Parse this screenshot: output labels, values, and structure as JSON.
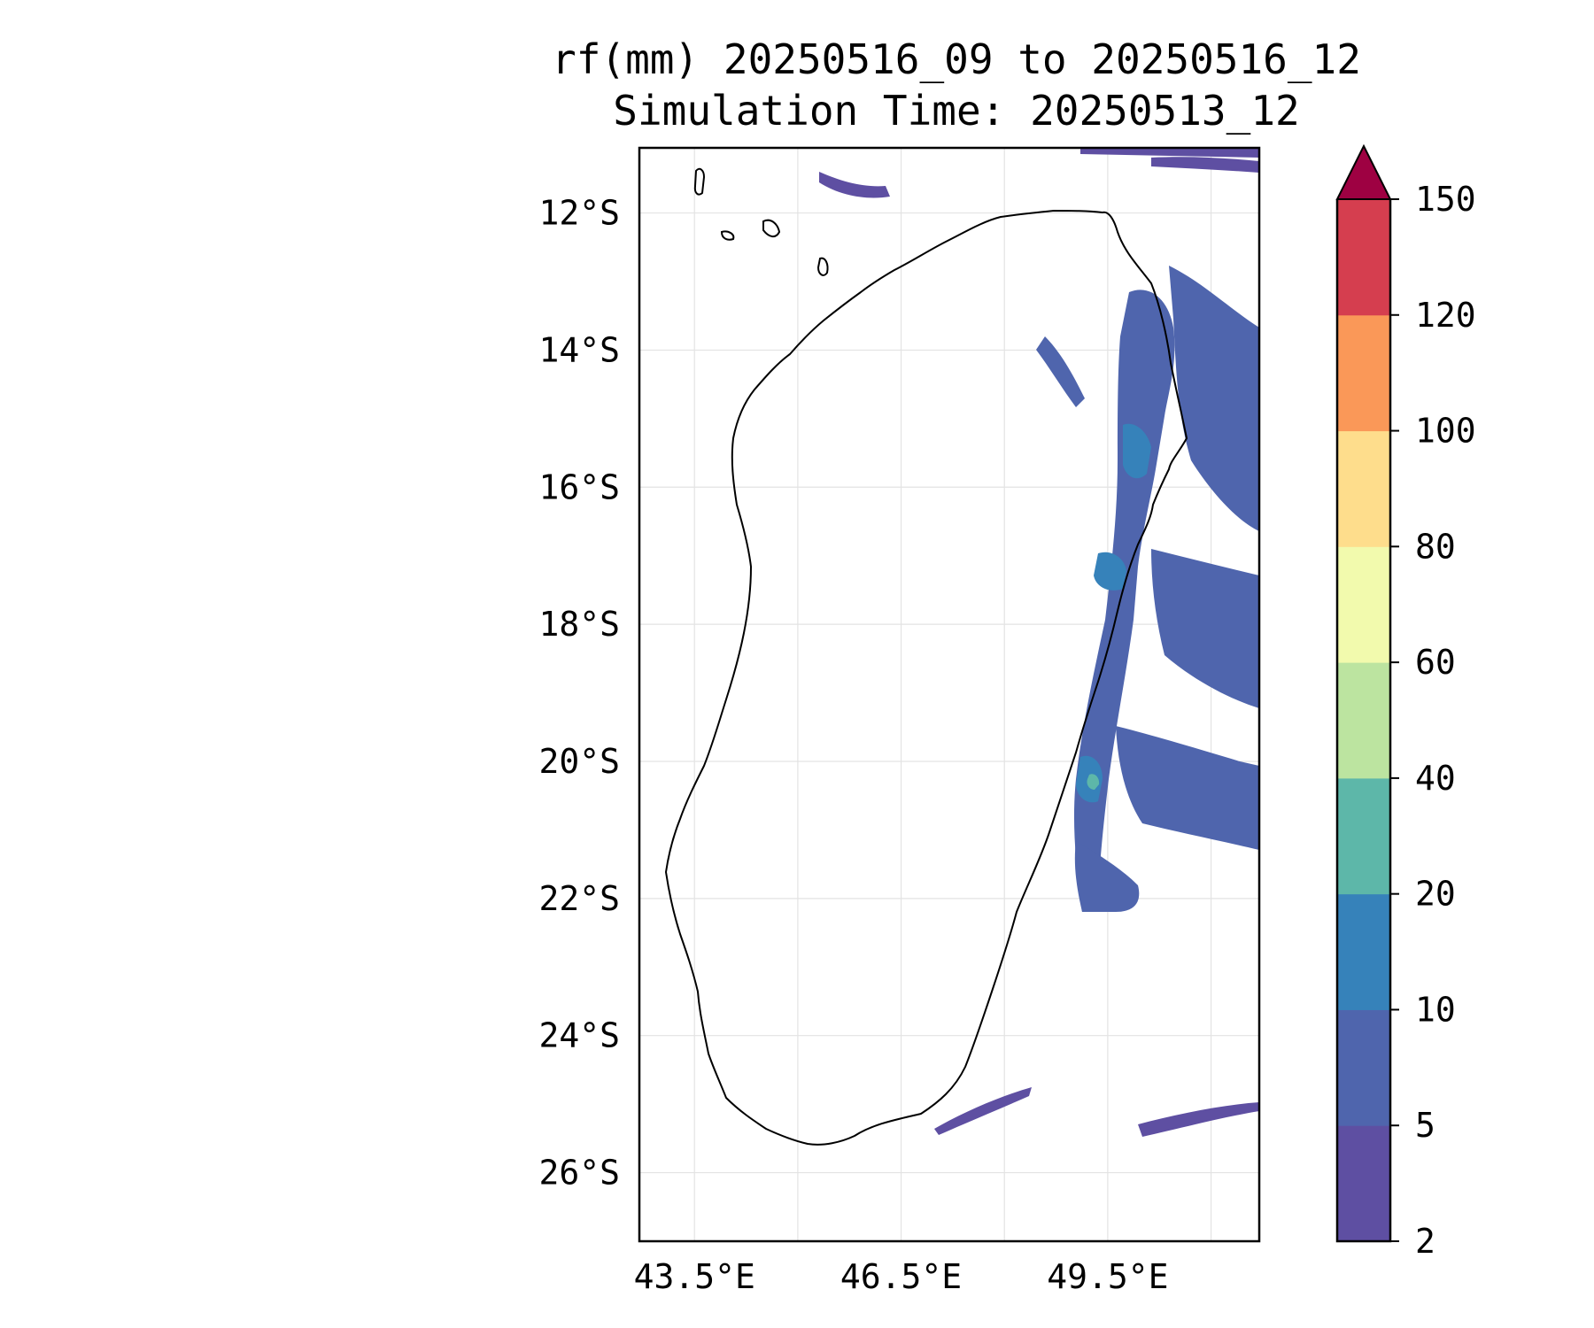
{
  "title": {
    "line1": "rf(mm) 20250516_09 to 20250516_12",
    "line2": "Simulation Time: 20250513_12"
  },
  "map": {
    "region": "Madagascar",
    "lon_range": [
      42.7,
      51.7
    ],
    "lat_range": [
      -27.0,
      -11.05
    ],
    "lat_ticks": [
      {
        "value": -12,
        "label": "12°S"
      },
      {
        "value": -14,
        "label": "14°S"
      },
      {
        "value": -16,
        "label": "16°S"
      },
      {
        "value": -18,
        "label": "18°S"
      },
      {
        "value": -20,
        "label": "20°S"
      },
      {
        "value": -22,
        "label": "22°S"
      },
      {
        "value": -24,
        "label": "24°S"
      },
      {
        "value": -26,
        "label": "26°S"
      }
    ],
    "lon_ticks": [
      {
        "value": 43.5,
        "label": "43.5°E"
      },
      {
        "value": 46.5,
        "label": "46.5°E"
      },
      {
        "value": 49.5,
        "label": "49.5°E"
      }
    ],
    "extra_gridlines_lon": [
      45.0,
      48.0,
      51.0
    ],
    "gridlines": true,
    "coastline_color": "#000000"
  },
  "colorbar": {
    "levels": [
      "2",
      "5",
      "10",
      "20",
      "40",
      "60",
      "80",
      "100",
      "120",
      "150"
    ],
    "colors": [
      "#5e4fa2",
      "#4f65ad",
      "#3682ba",
      "#5db7a9",
      "#bce4a0",
      "#f2faad",
      "#fedd8c",
      "#fa9858",
      "#d53e4f"
    ],
    "extend_color": "#9e0142",
    "extend": "max",
    "orientation": "vertical"
  },
  "rainfall_areas": [
    {
      "level": "2-5",
      "color": "#5e4fa2",
      "description": "light rain band offshore north"
    },
    {
      "level": "5-10",
      "color": "#4f65ad",
      "description": "east coast bands"
    },
    {
      "level": "10-20",
      "color": "#3682ba",
      "description": "east coast cores"
    },
    {
      "level": "20-40",
      "color": "#5db7a9",
      "description": "small patches near 20°S"
    }
  ]
}
